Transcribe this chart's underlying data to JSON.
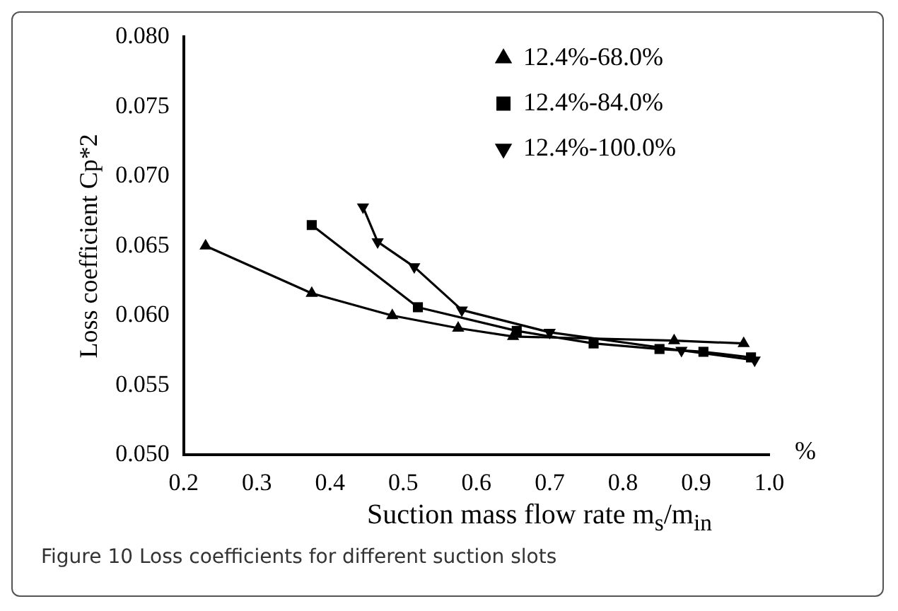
{
  "chart_data": {
    "type": "line",
    "xlabel": "Suction mass flow rate m$_{s}$/m$_{in}$",
    "ylabel": "Loss coefficient Cp*2",
    "annotations": [
      "%",
      "Figure 10  Loss coefficients for different suction slots"
    ],
    "xlim": [
      0.2,
      1.0
    ],
    "xticks": [
      0.2,
      0.3,
      0.4,
      0.5,
      0.6,
      0.7,
      0.8,
      0.9,
      {
        "value": 1.0,
        "label": "1.0"
      }
    ],
    "ylim": [
      0.05,
      0.08
    ],
    "yticks": [
      {
        "value": 0.05,
        "label": "0.050"
      },
      {
        "value": 0.055,
        "label": "0.055"
      },
      {
        "value": 0.06,
        "label": "0.060"
      },
      {
        "value": 0.065,
        "label": "0.065"
      },
      {
        "value": 0.07,
        "label": "0.070"
      },
      {
        "value": 0.075,
        "label": "0.075"
      },
      {
        "value": 0.08,
        "label": "0.080"
      }
    ],
    "grid": false,
    "legend": "top right",
    "line_style": "solid",
    "series": [
      {
        "name": "12.4%-68.0%",
        "color": "#000000",
        "marker": "triangle",
        "x": [
          0.23,
          0.375,
          0.485,
          0.575,
          0.65,
          0.87,
          0.965
        ],
        "values": [
          0.065,
          0.0616,
          0.06,
          0.0591,
          0.0585,
          0.0582,
          0.058
        ]
      },
      {
        "name": "12.4%-84.0%",
        "color": "#000000",
        "marker": "square",
        "x": [
          0.375,
          0.52,
          0.655,
          0.76,
          0.85,
          0.91,
          0.975
        ],
        "values": [
          0.0665,
          0.0606,
          0.0589,
          0.058,
          0.0576,
          0.0574,
          0.057
        ]
      },
      {
        "name": "12.4%-100.0%",
        "color": "#000000",
        "marker": "triangle-down",
        "x": [
          0.445,
          0.465,
          0.515,
          0.58,
          0.7,
          0.88,
          0.98
        ],
        "values": [
          0.0678,
          0.0653,
          0.0635,
          0.0604,
          0.0588,
          0.0575,
          0.0568
        ]
      }
    ]
  }
}
